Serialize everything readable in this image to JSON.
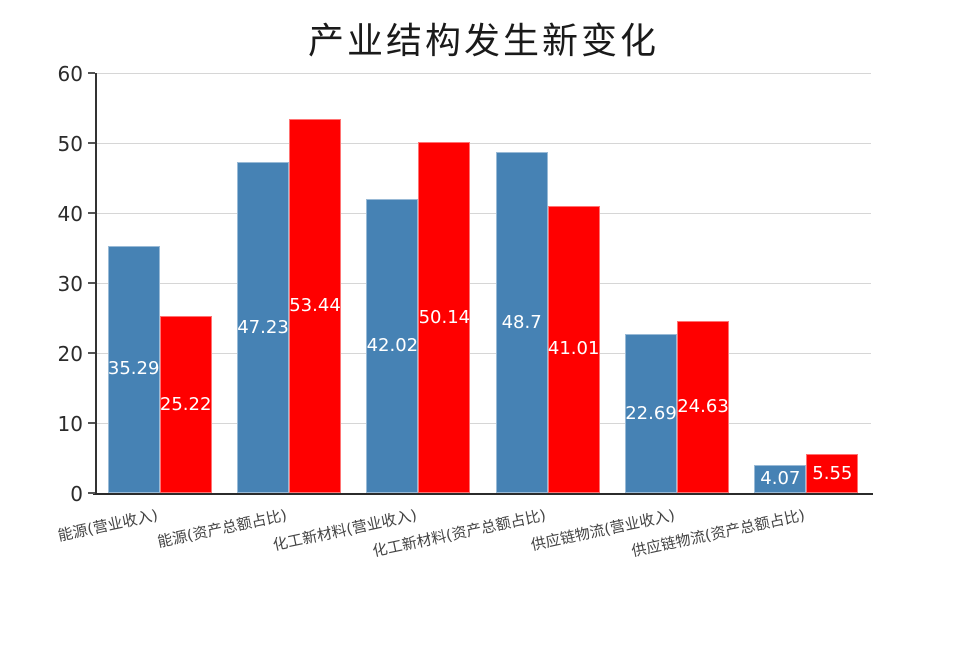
{
  "title": "产业结构发生新变化",
  "chart_data": {
    "type": "bar",
    "title": "产业结构发生新变化",
    "categories": [
      "能源(营业收入)",
      "能源(资产总额占比)",
      "化工新材料(营业收入)",
      "化工新材料(资产总额占比)",
      "供应链物流(营业收入)",
      "供应链物流(资产总额占比)"
    ],
    "series": [
      {
        "color_name": "blue",
        "color": "#4682B4",
        "values": [
          35.29,
          47.23,
          42.02,
          48.7,
          22.69,
          4.07
        ]
      },
      {
        "color_name": "red",
        "color": "#FF0000",
        "values": [
          25.22,
          53.44,
          50.14,
          41.01,
          24.63,
          5.55
        ]
      }
    ],
    "value_label_style": "inside-center-white",
    "xlabel": "",
    "ylabel": "",
    "ylim": [
      0,
      60
    ],
    "yticks": [
      0,
      10,
      20,
      30,
      40,
      50,
      60
    ],
    "grid": true,
    "legend_position": "none",
    "x_label_rotation_deg": -12
  },
  "colors": {
    "bar_blue": "#4682B4",
    "bar_red": "#FF0000",
    "gridline": "#d6d6d6",
    "axis": "#2b2b2b",
    "tick_label": "#2b2b2b",
    "category_label": "#444444",
    "value_label": "#ffffff",
    "title": "#1a1a1a",
    "background": "#ffffff"
  }
}
